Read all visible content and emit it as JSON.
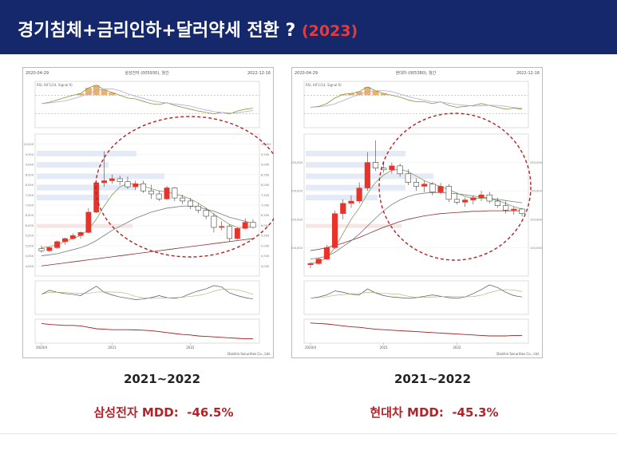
{
  "slide": {
    "title": "경기침체+금리인하+달러약세 전환 ?",
    "title_year": "(2023)",
    "colors": {
      "header_bg": "#14286b",
      "title_text": "#ffffff",
      "accent_red": "#e83a3a",
      "mdd_text": "#b4232a",
      "candle_up": "#e8332a",
      "candle_down": "#1f3f9f",
      "circle": "#b22222"
    }
  },
  "chart_data": [
    {
      "type": "candlestick",
      "title": "삼성전자 (005930), 월간",
      "date_start": "2020-04-29",
      "date_end": "2022-12-16",
      "x_ticks": [
        "2020/4",
        "2021",
        "2022"
      ],
      "footer": "Daishin Securities Co., Ltd.",
      "top_legend": "RSI, 9(F1/14, Signal 9)",
      "ylim": [
        3500,
        10500
      ],
      "y_ticks": [
        4000,
        4500,
        5000,
        5500,
        6000,
        6500,
        7000,
        7500,
        8000,
        8500,
        9000,
        9500,
        10000
      ],
      "candles": [
        {
          "o": 4850,
          "h": 5000,
          "l": 4650,
          "c": 4750
        },
        {
          "o": 4750,
          "h": 4950,
          "l": 4700,
          "c": 4900
        },
        {
          "o": 4900,
          "h": 5250,
          "l": 4850,
          "c": 5200
        },
        {
          "o": 5200,
          "h": 5400,
          "l": 5050,
          "c": 5350
        },
        {
          "o": 5350,
          "h": 5600,
          "l": 5300,
          "c": 5500
        },
        {
          "o": 5500,
          "h": 5700,
          "l": 5350,
          "c": 5650
        },
        {
          "o": 5650,
          "h": 6850,
          "l": 5600,
          "c": 6650
        },
        {
          "o": 6650,
          "h": 8100,
          "l": 6600,
          "c": 8100
        },
        {
          "o": 8100,
          "h": 9650,
          "l": 7900,
          "c": 8200
        },
        {
          "o": 8200,
          "h": 8500,
          "l": 8050,
          "c": 8300
        },
        {
          "o": 8300,
          "h": 8450,
          "l": 8000,
          "c": 8150
        },
        {
          "o": 8150,
          "h": 8400,
          "l": 7800,
          "c": 7900
        },
        {
          "o": 7900,
          "h": 8200,
          "l": 7750,
          "c": 8050
        },
        {
          "o": 8050,
          "h": 8200,
          "l": 7600,
          "c": 7700
        },
        {
          "o": 7700,
          "h": 8000,
          "l": 7300,
          "c": 7550
        },
        {
          "o": 7550,
          "h": 7700,
          "l": 7200,
          "c": 7300
        },
        {
          "o": 7300,
          "h": 7950,
          "l": 7250,
          "c": 7850
        },
        {
          "o": 7850,
          "h": 7900,
          "l": 7200,
          "c": 7350
        },
        {
          "o": 7350,
          "h": 7500,
          "l": 7050,
          "c": 7200
        },
        {
          "o": 7200,
          "h": 7350,
          "l": 6800,
          "c": 6950
        },
        {
          "o": 6950,
          "h": 7100,
          "l": 6600,
          "c": 6750
        },
        {
          "o": 6750,
          "h": 6850,
          "l": 6300,
          "c": 6450
        },
        {
          "o": 6450,
          "h": 6600,
          "l": 5650,
          "c": 5900
        },
        {
          "o": 5900,
          "h": 6200,
          "l": 5750,
          "c": 5950
        },
        {
          "o": 5950,
          "h": 6050,
          "l": 5200,
          "c": 5350
        },
        {
          "o": 5350,
          "h": 5900,
          "l": 5300,
          "c": 5850
        },
        {
          "o": 5850,
          "h": 6350,
          "l": 5800,
          "c": 6150
        },
        {
          "o": 6150,
          "h": 6300,
          "l": 5850,
          "c": 5900
        }
      ],
      "ma_short": [
        4900,
        4950,
        5050,
        5200,
        5350,
        5500,
        5800,
        6300,
        6950,
        7500,
        7900,
        8050,
        8050,
        7950,
        7800,
        7700,
        7650,
        7550,
        7450,
        7300,
        7100,
        6850,
        6550,
        6300,
        6050,
        5900,
        5900,
        5950
      ],
      "ma_long": [
        4500,
        4550,
        4600,
        4700,
        4800,
        4900,
        5050,
        5250,
        5500,
        5750,
        5950,
        6150,
        6350,
        6500,
        6650,
        6750,
        6850,
        6900,
        6950,
        6950,
        6900,
        6800,
        6700,
        6550,
        6400,
        6300,
        6200,
        6100
      ],
      "ma_slow": [
        4000,
        4050,
        4100,
        4150,
        4200,
        4250,
        4300,
        4350,
        4400,
        4450,
        4500,
        4550,
        4600,
        4650,
        4700,
        4750,
        4800,
        4850,
        4900,
        4950,
        5000,
        5050,
        5100,
        5150,
        5200,
        5250,
        5300,
        5350
      ],
      "rsi": [
        52,
        55,
        60,
        65,
        70,
        74,
        86,
        92,
        82,
        76,
        70,
        64,
        62,
        57,
        52,
        50,
        54,
        48,
        44,
        40,
        36,
        33,
        30,
        33,
        30,
        36,
        40,
        42
      ],
      "volume_line": [
        60,
        72,
        66,
        62,
        60,
        56,
        70,
        84,
        66,
        58,
        52,
        48,
        44,
        46,
        50,
        56,
        50,
        48,
        52,
        62,
        70,
        76,
        86,
        82,
        64,
        56,
        50,
        46
      ],
      "lower_line": [
        82,
        78,
        76,
        74,
        74,
        72,
        66,
        60,
        58,
        56,
        56,
        56,
        55,
        54,
        52,
        48,
        44,
        40,
        36,
        34,
        30,
        28,
        26,
        24,
        22,
        20,
        18,
        18
      ],
      "period": "2021~2022",
      "mdd_label": "삼성전자 MDD:",
      "mdd_value": "-46.5%"
    },
    {
      "type": "candlestick",
      "title": "현대차 (005380), 월간",
      "date_start": "2020-04-29",
      "date_end": "2022-12-16",
      "x_ticks": [
        "2020/4",
        "2021",
        "2022"
      ],
      "footer": "Daishin Securities Co., Ltd.",
      "top_legend": "RSI, 9(F1/14, Signal 9)",
      "ylim": [
        50000,
        300000
      ],
      "y_ticks": [
        100000,
        150000,
        200000,
        250000
      ],
      "candles": [
        {
          "o": 70000,
          "h": 75000,
          "l": 64000,
          "c": 72000
        },
        {
          "o": 72000,
          "h": 82000,
          "l": 70000,
          "c": 80000
        },
        {
          "o": 80000,
          "h": 105000,
          "l": 78000,
          "c": 100000
        },
        {
          "o": 100000,
          "h": 165000,
          "l": 98000,
          "c": 160000
        },
        {
          "o": 160000,
          "h": 185000,
          "l": 150000,
          "c": 178000
        },
        {
          "o": 178000,
          "h": 192000,
          "l": 170000,
          "c": 182000
        },
        {
          "o": 182000,
          "h": 215000,
          "l": 178000,
          "c": 205000
        },
        {
          "o": 205000,
          "h": 268000,
          "l": 200000,
          "c": 250000
        },
        {
          "o": 250000,
          "h": 289000,
          "l": 235000,
          "c": 240000
        },
        {
          "o": 240000,
          "h": 252000,
          "l": 232000,
          "c": 237000
        },
        {
          "o": 237000,
          "h": 250000,
          "l": 230000,
          "c": 244000
        },
        {
          "o": 244000,
          "h": 248000,
          "l": 225000,
          "c": 230000
        },
        {
          "o": 230000,
          "h": 238000,
          "l": 210000,
          "c": 215000
        },
        {
          "o": 215000,
          "h": 222000,
          "l": 200000,
          "c": 208000
        },
        {
          "o": 208000,
          "h": 218000,
          "l": 198000,
          "c": 212000
        },
        {
          "o": 212000,
          "h": 216000,
          "l": 192000,
          "c": 198000
        },
        {
          "o": 198000,
          "h": 214000,
          "l": 194000,
          "c": 208000
        },
        {
          "o": 208000,
          "h": 212000,
          "l": 180000,
          "c": 185000
        },
        {
          "o": 185000,
          "h": 196000,
          "l": 176000,
          "c": 180000
        },
        {
          "o": 180000,
          "h": 188000,
          "l": 172000,
          "c": 184000
        },
        {
          "o": 184000,
          "h": 192000,
          "l": 176000,
          "c": 188000
        },
        {
          "o": 188000,
          "h": 200000,
          "l": 182000,
          "c": 193000
        },
        {
          "o": 193000,
          "h": 198000,
          "l": 178000,
          "c": 182000
        },
        {
          "o": 182000,
          "h": 188000,
          "l": 170000,
          "c": 174000
        },
        {
          "o": 174000,
          "h": 182000,
          "l": 160000,
          "c": 166000
        },
        {
          "o": 166000,
          "h": 172000,
          "l": 158000,
          "c": 168000
        },
        {
          "o": 168000,
          "h": 170000,
          "l": 155000,
          "c": 160000
        }
      ],
      "ma_short": [
        72000,
        75000,
        82000,
        100000,
        125000,
        150000,
        170000,
        195000,
        215000,
        228000,
        236000,
        238000,
        234000,
        226000,
        218000,
        212000,
        208000,
        202000,
        196000,
        190000,
        187000,
        187000,
        186000,
        183000,
        178000,
        172000,
        168000
      ],
      "ma_long": [
        80000,
        82000,
        85000,
        92000,
        102000,
        112000,
        124000,
        138000,
        152000,
        165000,
        176000,
        184000,
        190000,
        194000,
        196000,
        197000,
        197000,
        196000,
        195000,
        193000,
        191000,
        189000,
        187000,
        185000,
        183000,
        181000,
        179000
      ],
      "ma_slow": [
        95000,
        97000,
        100000,
        104000,
        108000,
        113000,
        118000,
        124000,
        130000,
        136000,
        141000,
        146000,
        150000,
        153000,
        156000,
        158000,
        160000,
        161000,
        162000,
        163000,
        164000,
        164000,
        165000,
        165000,
        165000,
        165000,
        165000
      ],
      "rsi": [
        44,
        46,
        52,
        64,
        72,
        74,
        78,
        88,
        80,
        74,
        70,
        66,
        60,
        56,
        56,
        52,
        56,
        48,
        44,
        46,
        48,
        52,
        48,
        44,
        40,
        42,
        40
      ],
      "volume_line": [
        48,
        52,
        58,
        70,
        66,
        60,
        58,
        76,
        64,
        56,
        52,
        50,
        48,
        50,
        54,
        58,
        54,
        50,
        48,
        52,
        62,
        74,
        88,
        80,
        66,
        56,
        52
      ],
      "lower_line": [
        84,
        82,
        80,
        76,
        72,
        68,
        66,
        62,
        58,
        56,
        54,
        52,
        50,
        48,
        46,
        44,
        42,
        40,
        38,
        36,
        34,
        32,
        30,
        30,
        30,
        32,
        32
      ],
      "period": "2021~2022",
      "mdd_label": "현대차 MDD:",
      "mdd_value": "-45.3%"
    }
  ]
}
